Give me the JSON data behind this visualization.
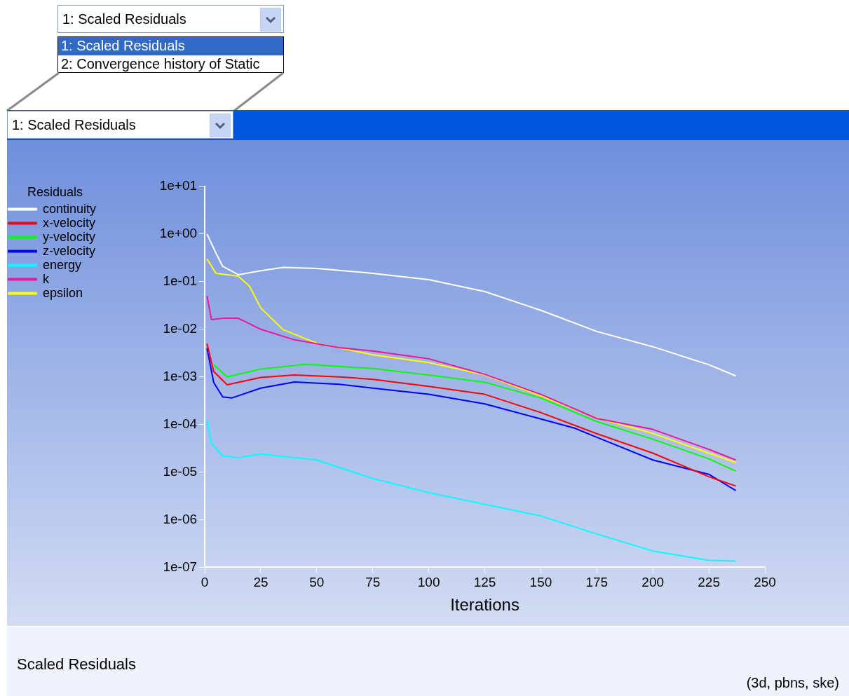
{
  "chart_data": {
    "type": "line",
    "xlabel": "Iterations",
    "legend_title": "Residuals",
    "legend": "top left",
    "grid": false,
    "log": "y",
    "marker": "none",
    "line_style": "solid",
    "xlim": [
      0,
      250
    ],
    "xticks": [
      0,
      25,
      50,
      75,
      100,
      125,
      150,
      175,
      200,
      225,
      250
    ],
    "ylim": [
      1e-07,
      10
    ],
    "yticks": [
      {
        "value": 10,
        "label": "1e+01"
      },
      {
        "value": 1,
        "label": "1e+00"
      },
      {
        "value": 0.1,
        "label": "1e-01"
      },
      {
        "value": 0.01,
        "label": "1e-02"
      },
      {
        "value": 0.001,
        "label": "1e-03"
      },
      {
        "value": 0.0001,
        "label": "1e-04"
      },
      {
        "value": 1e-05,
        "label": "1e-05"
      },
      {
        "value": 1e-06,
        "label": "1e-06"
      },
      {
        "value": 1e-07,
        "label": "1e-07"
      }
    ],
    "series": [
      {
        "name": "continuity",
        "color": "#ffffff",
        "x": [
          1,
          5,
          8,
          15,
          25,
          35,
          50,
          75,
          100,
          125,
          150,
          175,
          200,
          225,
          237
        ],
        "values": [
          1.0,
          0.4,
          0.21,
          0.14,
          0.17,
          0.2,
          0.19,
          0.15,
          0.11,
          0.062,
          0.025,
          0.009,
          0.0043,
          0.0018,
          0.00105
        ]
      },
      {
        "name": "x-velocity",
        "color": "#ff0000",
        "x": [
          1,
          4,
          10,
          25,
          40,
          60,
          75,
          100,
          125,
          150,
          175,
          200,
          225,
          237
        ],
        "values": [
          0.005,
          0.0013,
          0.00068,
          0.00097,
          0.0011,
          0.001,
          0.00089,
          0.00063,
          0.00043,
          0.000178,
          6.4e-05,
          2.5e-05,
          8e-06,
          5.1e-06
        ]
      },
      {
        "name": "y-velocity",
        "color": "#00ff00",
        "x": [
          4,
          10,
          25,
          45,
          75,
          100,
          125,
          150,
          175,
          200,
          225,
          237
        ],
        "values": [
          0.0018,
          0.001,
          0.00146,
          0.00183,
          0.0015,
          0.0011,
          0.00077,
          0.00036,
          0.000115,
          4.9e-05,
          1.9e-05,
          1.05e-05
        ]
      },
      {
        "name": "z-velocity",
        "color": "#0000ff",
        "x": [
          1,
          4,
          8,
          12,
          25,
          40,
          60,
          75,
          100,
          125,
          150,
          165,
          175,
          200,
          225,
          237
        ],
        "values": [
          0.004,
          0.00076,
          0.00038,
          0.00036,
          0.00058,
          0.00078,
          0.0007,
          0.00058,
          0.00043,
          0.00027,
          0.000131,
          8.4e-05,
          5.4e-05,
          1.8e-05,
          9e-06,
          4.1e-06
        ]
      },
      {
        "name": "energy",
        "color": "#00ffff",
        "x": [
          1,
          3,
          8,
          15,
          25,
          50,
          75,
          100,
          125,
          150,
          175,
          200,
          225,
          237
        ],
        "values": [
          0.00012,
          4e-05,
          2.2e-05,
          2e-05,
          2.4e-05,
          1.8e-05,
          7.3e-06,
          3.7e-06,
          2.1e-06,
          1.2e-06,
          5e-07,
          2.2e-07,
          1.4e-07,
          1.35e-07
        ]
      },
      {
        "name": "k",
        "color": "#f0159c",
        "x": [
          1,
          3,
          8,
          15,
          25,
          40,
          60,
          75,
          100,
          125,
          150,
          175,
          200,
          225,
          237
        ],
        "values": [
          0.05,
          0.016,
          0.017,
          0.017,
          0.01,
          0.006,
          0.0041,
          0.0035,
          0.0024,
          0.00113,
          0.00043,
          0.000134,
          7.9e-05,
          3e-05,
          1.8e-05
        ]
      },
      {
        "name": "epsilon",
        "color": "#ffff00",
        "x": [
          1,
          5,
          15,
          20,
          25,
          35,
          50,
          75,
          100,
          125,
          150,
          175,
          200,
          225,
          237
        ],
        "values": [
          0.3,
          0.15,
          0.13,
          0.08,
          0.028,
          0.0098,
          0.0051,
          0.0029,
          0.002,
          0.0011,
          0.0004,
          0.000137,
          6.5e-05,
          2.5e-05,
          1.6e-05
        ]
      }
    ],
    "annotations": [
      "1: Scaled Residuals",
      "1: Scaled Residuals",
      "2: Convergence history of Static",
      "1: Scaled Residuals",
      "Scaled Residuals",
      "(3d, pbns, ske)"
    ]
  }
}
